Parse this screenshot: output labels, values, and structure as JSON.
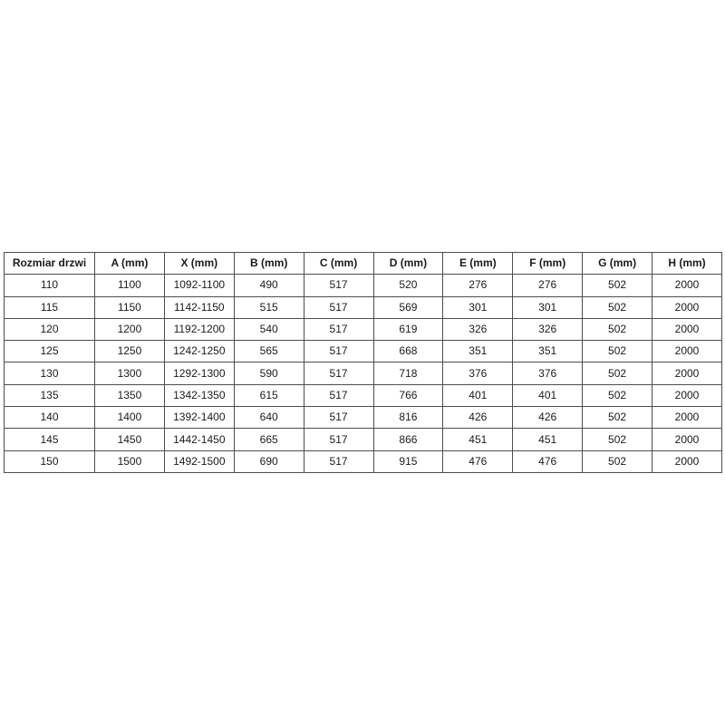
{
  "page": {
    "background_color": "#ffffff"
  },
  "table": {
    "name": "door-size-specification-table",
    "border_color": "#4d4d4d",
    "text_color": "#1a1a1a",
    "columns": [
      "Rozmiar drzwi",
      "A (mm)",
      "X (mm)",
      "B (mm)",
      "C (mm)",
      "D (mm)",
      "E (mm)",
      "F (mm)",
      "G (mm)",
      "H (mm)"
    ],
    "rows": [
      [
        "110",
        "1100",
        "1092-1100",
        "490",
        "517",
        "520",
        "276",
        "276",
        "502",
        "2000"
      ],
      [
        "115",
        "1150",
        "1142-1150",
        "515",
        "517",
        "569",
        "301",
        "301",
        "502",
        "2000"
      ],
      [
        "120",
        "1200",
        "1192-1200",
        "540",
        "517",
        "619",
        "326",
        "326",
        "502",
        "2000"
      ],
      [
        "125",
        "1250",
        "1242-1250",
        "565",
        "517",
        "668",
        "351",
        "351",
        "502",
        "2000"
      ],
      [
        "130",
        "1300",
        "1292-1300",
        "590",
        "517",
        "718",
        "376",
        "376",
        "502",
        "2000"
      ],
      [
        "135",
        "1350",
        "1342-1350",
        "615",
        "517",
        "766",
        "401",
        "401",
        "502",
        "2000"
      ],
      [
        "140",
        "1400",
        "1392-1400",
        "640",
        "517",
        "816",
        "426",
        "426",
        "502",
        "2000"
      ],
      [
        "145",
        "1450",
        "1442-1450",
        "665",
        "517",
        "866",
        "451",
        "451",
        "502",
        "2000"
      ],
      [
        "150",
        "1500",
        "1492-1500",
        "690",
        "517",
        "915",
        "476",
        "476",
        "502",
        "2000"
      ]
    ]
  }
}
